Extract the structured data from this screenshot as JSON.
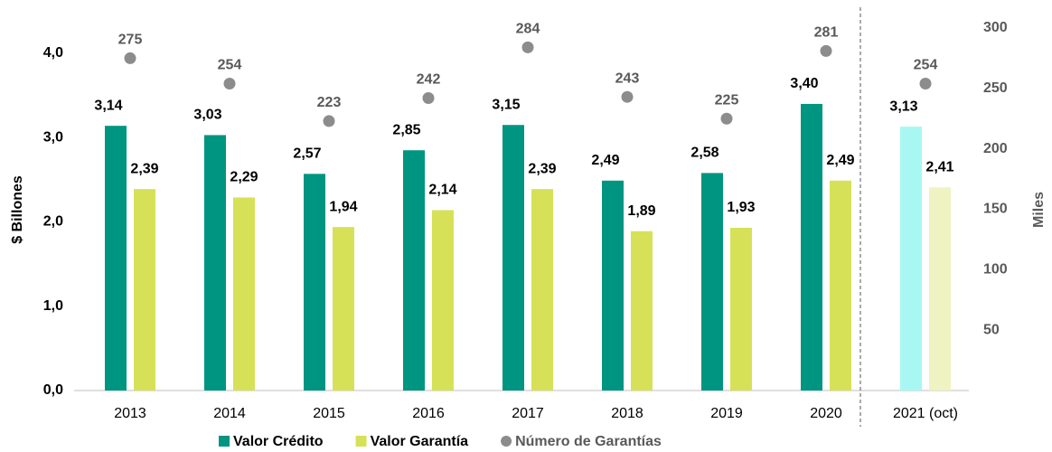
{
  "chart_data": {
    "type": "bar",
    "categories": [
      "2013",
      "2014",
      "2015",
      "2016",
      "2017",
      "2018",
      "2019",
      "2020",
      "2021 (oct)"
    ],
    "series": [
      {
        "name": "Valor Crédito",
        "color": "#009580",
        "colors": [
          "#009580",
          "#009580",
          "#009580",
          "#009580",
          "#009580",
          "#009580",
          "#009580",
          "#009580",
          "#a8f7f2"
        ],
        "values": [
          3.14,
          3.03,
          2.57,
          2.85,
          3.15,
          2.49,
          2.58,
          3.4,
          3.13
        ],
        "value_labels": [
          "3,14",
          "3,03",
          "2,57",
          "2,85",
          "3,15",
          "2,49",
          "2,58",
          "3,40",
          "3,13"
        ]
      },
      {
        "name": "Valor Garantía",
        "color": "#d6e158",
        "colors": [
          "#d6e158",
          "#d6e158",
          "#d6e158",
          "#d6e158",
          "#d6e158",
          "#d6e158",
          "#d6e158",
          "#d6e158",
          "#eef3c1"
        ],
        "values": [
          2.39,
          2.29,
          1.94,
          2.14,
          2.39,
          1.89,
          1.93,
          2.49,
          2.41
        ],
        "value_labels": [
          "2,39",
          "2,29",
          "1,94",
          "2,14",
          "2,39",
          "1,89",
          "1,93",
          "2,49",
          "2,41"
        ]
      },
      {
        "name": "Número de Garantías",
        "color": "#8c8c8c",
        "type": "scatter",
        "axis": "y2",
        "values": [
          275,
          254,
          223,
          242,
          284,
          243,
          225,
          281,
          254
        ]
      }
    ],
    "ylabel": "$ Billones",
    "y2label": "Miles",
    "ylim": [
      0,
      4.3
    ],
    "yticks": [
      {
        "value": 0,
        "label": "0,0"
      },
      {
        "value": 1,
        "label": "1,0"
      },
      {
        "value": 2,
        "label": "2,0"
      },
      {
        "value": 3,
        "label": "3,0"
      },
      {
        "value": 4,
        "label": "4,0"
      }
    ],
    "y2lim": [
      0,
      300
    ],
    "y2ticks": [
      50,
      100,
      150,
      200,
      250,
      300
    ],
    "legend": "bottom",
    "grid": false
  }
}
